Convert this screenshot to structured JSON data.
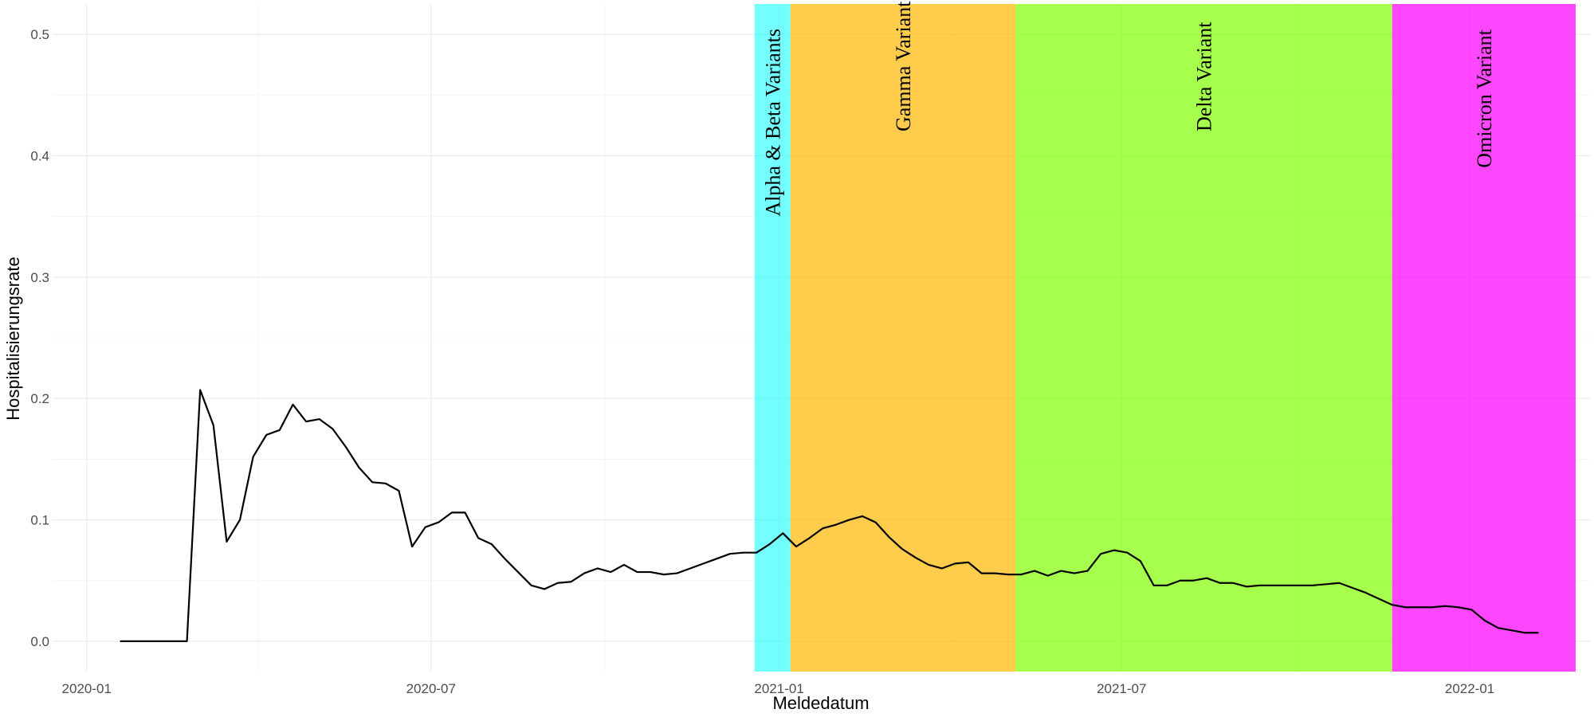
{
  "chart_data": {
    "type": "line",
    "xlabel": "Meldedatum",
    "ylabel": "Hospitalisierungsrate",
    "xlim": [
      "2019-12-14",
      "2022-03-06"
    ],
    "ylim": [
      -0.025,
      0.525
    ],
    "x_ticks": [
      {
        "date": "2020-01-01",
        "label": "2020-01"
      },
      {
        "date": "2020-07-01",
        "label": "2020-07"
      },
      {
        "date": "2021-01-01",
        "label": "2021-01"
      },
      {
        "date": "2021-07-01",
        "label": "2021-07"
      },
      {
        "date": "2022-01-01",
        "label": "2022-01"
      }
    ],
    "y_ticks": [
      {
        "value": 0.0,
        "label": "0.0"
      },
      {
        "value": 0.1,
        "label": "0.1"
      },
      {
        "value": 0.2,
        "label": "0.2"
      },
      {
        "value": 0.3,
        "label": "0.3"
      },
      {
        "value": 0.4,
        "label": "0.4"
      },
      {
        "value": 0.5,
        "label": "0.5"
      }
    ],
    "grid": true,
    "bands": [
      {
        "label": "Alpha & Beta Variants",
        "start": "2020-12-19",
        "end": "2021-01-07",
        "color": "#00FFFF",
        "opacity": 0.55,
        "label_y": 0.35
      },
      {
        "label": "Gamma Variant",
        "start": "2021-01-07",
        "end": "2021-05-06",
        "color": "#FFB700",
        "opacity": 0.7,
        "label_y": 0.42
      },
      {
        "label": "Delta Variant",
        "start": "2021-05-06",
        "end": "2021-11-21",
        "color": "#7FFF00",
        "opacity": 0.7,
        "label_y": 0.42
      },
      {
        "label": "Omicron Variant",
        "start": "2021-11-21",
        "end": "2022-02-26",
        "color": "#FF00FF",
        "opacity": 0.72,
        "label_y": 0.39
      }
    ],
    "series": [
      {
        "color": "#000000",
        "points": [
          [
            "2020-01-19",
            0.0
          ],
          [
            "2020-01-26",
            0.0
          ],
          [
            "2020-02-02",
            0.0
          ],
          [
            "2020-02-09",
            0.0
          ],
          [
            "2020-02-16",
            0.0
          ],
          [
            "2020-02-23",
            0.0
          ],
          [
            "2020-03-01",
            0.207
          ],
          [
            "2020-03-08",
            0.178
          ],
          [
            "2020-03-15",
            0.082
          ],
          [
            "2020-03-22",
            0.1
          ],
          [
            "2020-03-29",
            0.152
          ],
          [
            "2020-04-05",
            0.17
          ],
          [
            "2020-04-12",
            0.174
          ],
          [
            "2020-04-19",
            0.195
          ],
          [
            "2020-04-26",
            0.181
          ],
          [
            "2020-05-03",
            0.183
          ],
          [
            "2020-05-10",
            0.175
          ],
          [
            "2020-05-17",
            0.16
          ],
          [
            "2020-05-24",
            0.143
          ],
          [
            "2020-05-31",
            0.131
          ],
          [
            "2020-06-07",
            0.13
          ],
          [
            "2020-06-14",
            0.124
          ],
          [
            "2020-06-21",
            0.078
          ],
          [
            "2020-06-28",
            0.094
          ],
          [
            "2020-07-05",
            0.098
          ],
          [
            "2020-07-12",
            0.106
          ],
          [
            "2020-07-19",
            0.106
          ],
          [
            "2020-07-26",
            0.085
          ],
          [
            "2020-08-02",
            0.08
          ],
          [
            "2020-08-09",
            0.068
          ],
          [
            "2020-08-16",
            0.057
          ],
          [
            "2020-08-23",
            0.046
          ],
          [
            "2020-08-30",
            0.043
          ],
          [
            "2020-09-06",
            0.048
          ],
          [
            "2020-09-13",
            0.049
          ],
          [
            "2020-09-20",
            0.056
          ],
          [
            "2020-09-27",
            0.06
          ],
          [
            "2020-10-04",
            0.057
          ],
          [
            "2020-10-11",
            0.063
          ],
          [
            "2020-10-18",
            0.057
          ],
          [
            "2020-10-25",
            0.057
          ],
          [
            "2020-11-01",
            0.055
          ],
          [
            "2020-11-08",
            0.056
          ],
          [
            "2020-11-15",
            0.06
          ],
          [
            "2020-11-22",
            0.064
          ],
          [
            "2020-11-29",
            0.068
          ],
          [
            "2020-12-06",
            0.072
          ],
          [
            "2020-12-13",
            0.073
          ],
          [
            "2020-12-20",
            0.073
          ],
          [
            "2020-12-27",
            0.08
          ],
          [
            "2021-01-03",
            0.089
          ],
          [
            "2021-01-10",
            0.078
          ],
          [
            "2021-01-17",
            0.085
          ],
          [
            "2021-01-24",
            0.093
          ],
          [
            "2021-01-31",
            0.096
          ],
          [
            "2021-02-07",
            0.1
          ],
          [
            "2021-02-14",
            0.103
          ],
          [
            "2021-02-21",
            0.098
          ],
          [
            "2021-02-28",
            0.086
          ],
          [
            "2021-03-07",
            0.076
          ],
          [
            "2021-03-14",
            0.069
          ],
          [
            "2021-03-21",
            0.063
          ],
          [
            "2021-03-28",
            0.06
          ],
          [
            "2021-04-04",
            0.064
          ],
          [
            "2021-04-11",
            0.065
          ],
          [
            "2021-04-18",
            0.056
          ],
          [
            "2021-04-25",
            0.056
          ],
          [
            "2021-05-02",
            0.055
          ],
          [
            "2021-05-09",
            0.055
          ],
          [
            "2021-05-16",
            0.058
          ],
          [
            "2021-05-23",
            0.054
          ],
          [
            "2021-05-30",
            0.058
          ],
          [
            "2021-06-06",
            0.056
          ],
          [
            "2021-06-13",
            0.058
          ],
          [
            "2021-06-20",
            0.072
          ],
          [
            "2021-06-27",
            0.075
          ],
          [
            "2021-07-04",
            0.073
          ],
          [
            "2021-07-11",
            0.066
          ],
          [
            "2021-07-18",
            0.046
          ],
          [
            "2021-07-25",
            0.046
          ],
          [
            "2021-08-01",
            0.05
          ],
          [
            "2021-08-08",
            0.05
          ],
          [
            "2021-08-15",
            0.052
          ],
          [
            "2021-08-22",
            0.048
          ],
          [
            "2021-08-29",
            0.048
          ],
          [
            "2021-09-05",
            0.045
          ],
          [
            "2021-09-12",
            0.046
          ],
          [
            "2021-09-19",
            0.046
          ],
          [
            "2021-09-26",
            0.046
          ],
          [
            "2021-10-03",
            0.046
          ],
          [
            "2021-10-10",
            0.046
          ],
          [
            "2021-10-17",
            0.047
          ],
          [
            "2021-10-24",
            0.048
          ],
          [
            "2021-10-31",
            0.044
          ],
          [
            "2021-11-07",
            0.04
          ],
          [
            "2021-11-14",
            0.035
          ],
          [
            "2021-11-21",
            0.03
          ],
          [
            "2021-11-28",
            0.028
          ],
          [
            "2021-12-05",
            0.028
          ],
          [
            "2021-12-12",
            0.028
          ],
          [
            "2021-12-19",
            0.029
          ],
          [
            "2021-12-26",
            0.028
          ],
          [
            "2022-01-02",
            0.026
          ],
          [
            "2022-01-09",
            0.017
          ],
          [
            "2022-01-16",
            0.011
          ],
          [
            "2022-01-23",
            0.009
          ],
          [
            "2022-01-30",
            0.007
          ],
          [
            "2022-02-06",
            0.007
          ]
        ]
      }
    ]
  }
}
